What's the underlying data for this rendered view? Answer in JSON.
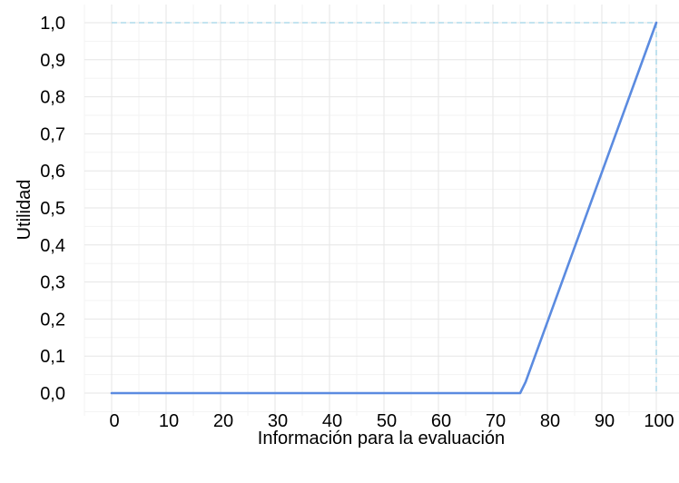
{
  "chart_data": {
    "type": "line",
    "title": "",
    "xlabel": "Información para la evaluación",
    "ylabel": "Utilidad",
    "xlim": [
      0,
      100
    ],
    "ylim": [
      0,
      1
    ],
    "x_ticks": [
      0,
      10,
      20,
      30,
      40,
      50,
      60,
      70,
      80,
      90,
      100
    ],
    "x_tick_labels": [
      "0",
      "10",
      "20",
      "30",
      "40",
      "50",
      "60",
      "70",
      "80",
      "90",
      "100"
    ],
    "y_ticks": [
      0,
      0.1,
      0.2,
      0.3,
      0.4,
      0.5,
      0.6,
      0.7,
      0.8,
      0.9,
      1.0
    ],
    "y_tick_labels": [
      "0,0",
      "0,1",
      "0,2",
      "0,3",
      "0,4",
      "0,5",
      "0,6",
      "0,7",
      "0,8",
      "0,9",
      "1,0"
    ],
    "grid": true,
    "series": [
      {
        "x": [
          0,
          75,
          76,
          100
        ],
        "y": [
          0,
          0,
          0.03,
          1.0
        ],
        "color": "#5b8be0"
      }
    ],
    "reference_lines": [
      {
        "orientation": "horizontal",
        "value": 1.0,
        "style": "dashed",
        "color": "#9fd3e6"
      },
      {
        "orientation": "vertical",
        "value": 100,
        "style": "dashed",
        "color": "#9fd3e6"
      }
    ],
    "colors": {
      "grid_major": "#e6e6e6",
      "grid_minor": "#f3f3f3"
    }
  }
}
